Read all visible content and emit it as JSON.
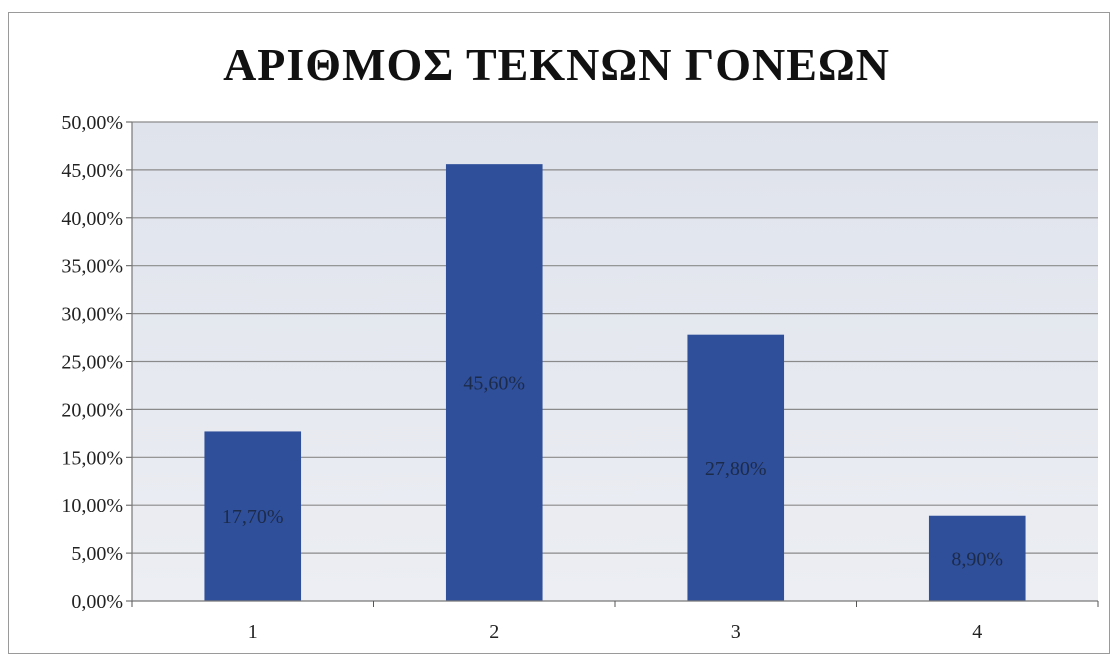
{
  "chart_data": {
    "type": "bar",
    "title": "ΑΡΙΘΜΟΣ ΤΕΚΝΩΝ ΓΟΝΕΩΝ",
    "categories": [
      "1",
      "2",
      "3",
      "4"
    ],
    "values": [
      17.7,
      45.6,
      27.8,
      8.9
    ],
    "data_labels": [
      "17,70%",
      "45,60%",
      "27,80%",
      "8,90%"
    ],
    "y_tick_labels": [
      "0,00%",
      "5,00%",
      "10,00%",
      "15,00%",
      "20,00%",
      "25,00%",
      "30,00%",
      "35,00%",
      "40,00%",
      "45,00%",
      "50,00%"
    ],
    "ylim": [
      0,
      50
    ],
    "y_unit": "%",
    "grid": true,
    "legend": "none",
    "xlabel": "",
    "ylabel": "",
    "colors": {
      "bar": "#2f4f9a",
      "plot_background": "#e3e6ee",
      "gridline": "#8a8a8a"
    }
  }
}
